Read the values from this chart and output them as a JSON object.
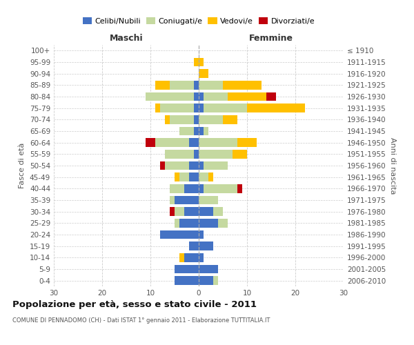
{
  "age_groups": [
    "100+",
    "95-99",
    "90-94",
    "85-89",
    "80-84",
    "75-79",
    "70-74",
    "65-69",
    "60-64",
    "55-59",
    "50-54",
    "45-49",
    "40-44",
    "35-39",
    "30-34",
    "25-29",
    "20-24",
    "15-19",
    "10-14",
    "5-9",
    "0-4"
  ],
  "birth_years": [
    "≤ 1910",
    "1911-1915",
    "1916-1920",
    "1921-1925",
    "1926-1930",
    "1931-1935",
    "1936-1940",
    "1941-1945",
    "1946-1950",
    "1951-1955",
    "1956-1960",
    "1961-1965",
    "1966-1970",
    "1971-1975",
    "1976-1980",
    "1981-1985",
    "1986-1990",
    "1991-1995",
    "1996-2000",
    "2001-2005",
    "2006-2010"
  ],
  "maschi_celibi": [
    0,
    0,
    0,
    1,
    1,
    1,
    1,
    1,
    2,
    1,
    2,
    2,
    3,
    5,
    3,
    4,
    8,
    2,
    3,
    5,
    5
  ],
  "maschi_coniugati": [
    0,
    0,
    0,
    5,
    10,
    7,
    5,
    3,
    7,
    6,
    5,
    2,
    3,
    1,
    2,
    1,
    0,
    0,
    0,
    0,
    0
  ],
  "maschi_vedovi": [
    0,
    1,
    0,
    3,
    0,
    1,
    1,
    0,
    0,
    0,
    0,
    1,
    0,
    0,
    0,
    0,
    0,
    0,
    1,
    0,
    0
  ],
  "maschi_divorziati": [
    0,
    0,
    0,
    0,
    0,
    0,
    0,
    0,
    2,
    0,
    1,
    0,
    0,
    0,
    1,
    0,
    0,
    0,
    0,
    0,
    0
  ],
  "femmine_celibi": [
    0,
    0,
    0,
    0,
    1,
    1,
    0,
    1,
    0,
    0,
    1,
    0,
    1,
    0,
    3,
    4,
    1,
    3,
    1,
    4,
    3
  ],
  "femmine_coniugati": [
    0,
    0,
    0,
    5,
    5,
    9,
    5,
    1,
    8,
    7,
    5,
    2,
    7,
    4,
    2,
    2,
    0,
    0,
    0,
    0,
    1
  ],
  "femmine_vedovi": [
    0,
    1,
    2,
    8,
    8,
    12,
    3,
    0,
    4,
    3,
    0,
    1,
    0,
    0,
    0,
    0,
    0,
    0,
    0,
    0,
    0
  ],
  "femmine_divorziati": [
    0,
    0,
    0,
    0,
    2,
    0,
    0,
    0,
    0,
    0,
    0,
    0,
    1,
    0,
    0,
    0,
    0,
    0,
    0,
    0,
    0
  ],
  "colors": {
    "celibi": "#4472c4",
    "coniugati": "#c5d9a0",
    "vedovi": "#ffc000",
    "divorziati": "#c0000c"
  },
  "legend_labels": [
    "Celibi/Nubili",
    "Coniugati/e",
    "Vedovi/e",
    "Divorziati/e"
  ],
  "title": "Popolazione per età, sesso e stato civile - 2011",
  "subtitle": "COMUNE DI PENNADOMO (CH) - Dati ISTAT 1° gennaio 2011 - Elaborazione TUTTITALIA.IT",
  "ylabel_left": "Fasce di età",
  "ylabel_right": "Anni di nascita",
  "xlabel_maschi": "Maschi",
  "xlabel_femmine": "Femmine",
  "xlim": 30,
  "background_color": "#ffffff",
  "grid_color": "#cccccc"
}
